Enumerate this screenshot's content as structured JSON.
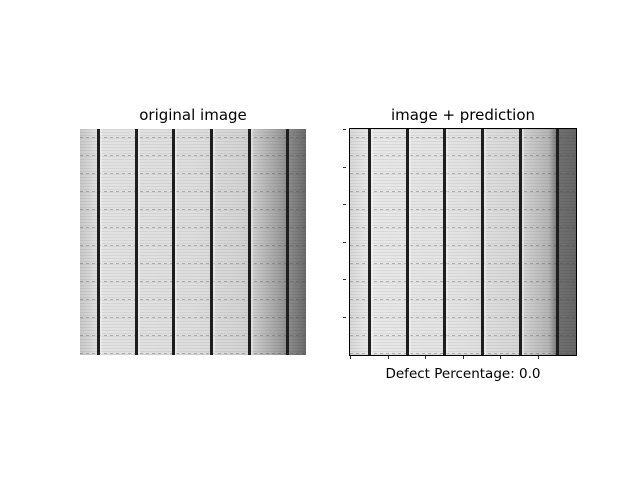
{
  "panels": {
    "left": {
      "title": "original image"
    },
    "right": {
      "title": "image + prediction",
      "caption_label": "Defect Percentage:",
      "caption_value": "0.0",
      "caption": "Defect Percentage: 0.0"
    }
  },
  "colors": {
    "background": "#ffffff",
    "cell_light": "#e6e6e6",
    "cell_mid": "#cfcfcf",
    "busbar": "#1e1e1e",
    "edge_dark": "#6e6e6e"
  }
}
